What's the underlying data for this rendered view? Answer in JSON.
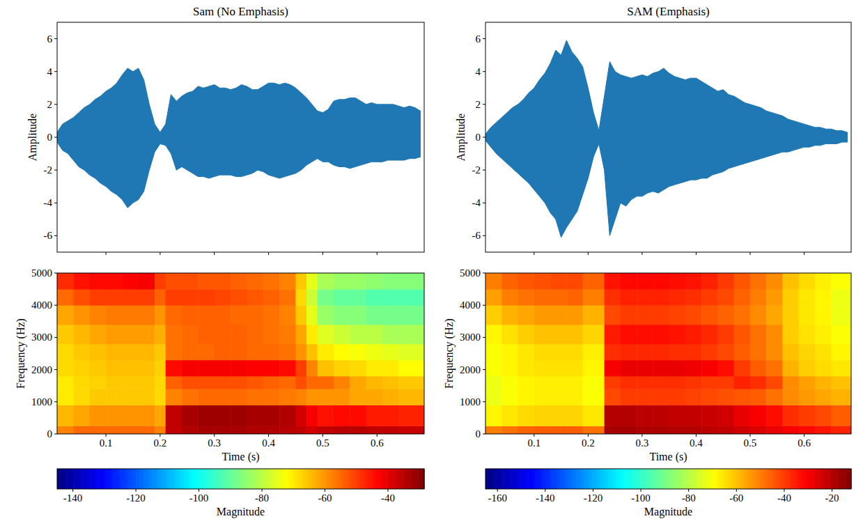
{
  "chart_data": [
    {
      "type": "area",
      "title": "Sam (No Emphasis)",
      "y_label": "Amplitude",
      "color": "#1f77b4",
      "xlim": [
        0.01,
        0.687
      ],
      "xticks": [
        0.1,
        0.2,
        0.3,
        0.4,
        0.5,
        0.6
      ],
      "ylim": [
        -7,
        7
      ],
      "yticks": [
        -6,
        -4,
        -2,
        0,
        2,
        4,
        6
      ],
      "tick_labels": "y",
      "x": [
        0.01,
        0.02,
        0.03,
        0.04,
        0.05,
        0.06,
        0.07,
        0.08,
        0.09,
        0.1,
        0.11,
        0.12,
        0.13,
        0.14,
        0.15,
        0.16,
        0.17,
        0.18,
        0.19,
        0.2,
        0.21,
        0.22,
        0.23,
        0.24,
        0.25,
        0.26,
        0.27,
        0.28,
        0.29,
        0.3,
        0.31,
        0.32,
        0.33,
        0.34,
        0.35,
        0.36,
        0.37,
        0.38,
        0.39,
        0.4,
        0.41,
        0.42,
        0.43,
        0.44,
        0.45,
        0.46,
        0.47,
        0.48,
        0.49,
        0.5,
        0.51,
        0.52,
        0.53,
        0.54,
        0.55,
        0.56,
        0.57,
        0.58,
        0.59,
        0.6,
        0.61,
        0.62,
        0.63,
        0.64,
        0.65,
        0.66,
        0.67,
        0.68
      ],
      "values": [
        0.3,
        0.8,
        1.0,
        1.2,
        1.5,
        1.8,
        2.0,
        2.3,
        2.5,
        2.8,
        3.0,
        3.3,
        3.8,
        4.2,
        4.0,
        4.2,
        3.5,
        2.0,
        0.8,
        0.3,
        0.8,
        2.6,
        2.2,
        2.5,
        2.7,
        2.8,
        3.1,
        3.0,
        3.1,
        3.2,
        3.0,
        3.0,
        2.9,
        3.0,
        3.2,
        3.1,
        2.9,
        2.9,
        3.1,
        3.3,
        3.3,
        3.2,
        3.3,
        3.2,
        3.0,
        2.7,
        2.4,
        2.0,
        1.6,
        1.5,
        1.7,
        2.2,
        2.3,
        2.3,
        2.4,
        2.4,
        2.2,
        2.0,
        2.1,
        2.0,
        2.0,
        2.0,
        2.0,
        1.9,
        1.8,
        1.9,
        1.8,
        1.6
      ],
      "low": [
        -0.3,
        -0.8,
        -1.0,
        -1.4,
        -1.8,
        -2.0,
        -2.3,
        -2.5,
        -2.8,
        -3.0,
        -3.3,
        -3.5,
        -3.8,
        -4.3,
        -4.0,
        -3.8,
        -3.3,
        -2.0,
        -0.9,
        -0.4,
        -0.5,
        -1.0,
        -2.0,
        -1.8,
        -2.0,
        -2.2,
        -2.4,
        -2.4,
        -2.5,
        -2.4,
        -2.3,
        -2.3,
        -2.3,
        -2.4,
        -2.4,
        -2.3,
        -2.2,
        -2.0,
        -2.1,
        -2.3,
        -2.4,
        -2.5,
        -2.4,
        -2.3,
        -2.2,
        -2.0,
        -1.7,
        -1.5,
        -1.3,
        -1.5,
        -1.5,
        -1.7,
        -1.8,
        -1.8,
        -1.9,
        -1.8,
        -1.7,
        -1.6,
        -1.5,
        -1.5,
        -1.5,
        -1.4,
        -1.4,
        -1.4,
        -1.4,
        -1.3,
        -1.3,
        -1.2
      ]
    },
    {
      "type": "area",
      "title": "SAM (Emphasis)",
      "y_label": "Amplitude",
      "color": "#1f77b4",
      "xlim": [
        0.01,
        0.687
      ],
      "xticks": [
        0.1,
        0.2,
        0.3,
        0.4,
        0.5,
        0.6
      ],
      "ylim": [
        -7,
        7
      ],
      "yticks": [
        -6,
        -4,
        -2,
        0,
        2,
        4,
        6
      ],
      "tick_labels": "y",
      "x": [
        0.01,
        0.02,
        0.03,
        0.04,
        0.05,
        0.06,
        0.07,
        0.08,
        0.09,
        0.1,
        0.11,
        0.12,
        0.13,
        0.14,
        0.15,
        0.16,
        0.17,
        0.18,
        0.19,
        0.2,
        0.21,
        0.22,
        0.23,
        0.24,
        0.25,
        0.26,
        0.27,
        0.28,
        0.29,
        0.3,
        0.31,
        0.32,
        0.33,
        0.34,
        0.35,
        0.36,
        0.37,
        0.38,
        0.39,
        0.4,
        0.41,
        0.42,
        0.43,
        0.44,
        0.45,
        0.46,
        0.47,
        0.48,
        0.49,
        0.5,
        0.51,
        0.52,
        0.53,
        0.54,
        0.55,
        0.56,
        0.57,
        0.58,
        0.59,
        0.6,
        0.61,
        0.62,
        0.63,
        0.64,
        0.65,
        0.66,
        0.67,
        0.68
      ],
      "values": [
        0.2,
        0.6,
        0.9,
        1.2,
        1.5,
        1.8,
        2.0,
        2.3,
        2.7,
        3.0,
        3.5,
        3.9,
        4.5,
        5.3,
        5.0,
        5.9,
        5.2,
        4.8,
        4.3,
        3.0,
        1.5,
        0.4,
        2.5,
        4.6,
        4.0,
        3.8,
        3.7,
        3.6,
        3.7,
        3.8,
        3.7,
        3.9,
        4.0,
        4.2,
        3.9,
        3.7,
        3.6,
        3.5,
        3.6,
        3.6,
        3.4,
        3.2,
        3.0,
        2.8,
        2.9,
        2.6,
        2.5,
        2.3,
        2.1,
        2.0,
        1.9,
        1.8,
        1.6,
        1.5,
        1.4,
        1.3,
        1.1,
        1.0,
        0.9,
        0.8,
        0.7,
        0.6,
        0.6,
        0.5,
        0.5,
        0.4,
        0.4,
        0.3
      ],
      "low": [
        -0.2,
        -0.6,
        -1.0,
        -1.3,
        -1.6,
        -1.9,
        -2.2,
        -2.5,
        -2.8,
        -3.2,
        -3.6,
        -4.0,
        -4.6,
        -5.0,
        -6.1,
        -5.5,
        -5.0,
        -4.5,
        -3.5,
        -2.5,
        -1.2,
        -0.4,
        -2.0,
        -6.0,
        -5.0,
        -4.0,
        -4.2,
        -3.8,
        -3.6,
        -3.6,
        -3.4,
        -3.3,
        -3.4,
        -3.2,
        -3.0,
        -2.9,
        -2.8,
        -2.7,
        -2.6,
        -2.6,
        -2.5,
        -2.5,
        -2.3,
        -2.2,
        -2.1,
        -1.9,
        -1.8,
        -1.7,
        -1.6,
        -1.5,
        -1.4,
        -1.3,
        -1.2,
        -1.1,
        -1.0,
        -0.9,
        -0.9,
        -0.8,
        -0.7,
        -0.6,
        -0.6,
        -0.5,
        -0.5,
        -0.4,
        -0.4,
        -0.4,
        -0.3,
        -0.3
      ]
    },
    {
      "type": "heatmap",
      "x_label": "Time (s)",
      "y_label": "Frequency (Hz)",
      "xlim": [
        0.01,
        0.687
      ],
      "xticks": [
        0.1,
        0.2,
        0.3,
        0.4,
        0.5,
        0.6
      ],
      "ylim": [
        0,
        5000
      ],
      "yticks": [
        0,
        1000,
        2000,
        3000,
        4000,
        5000
      ],
      "x_bins": [
        0.01,
        0.04,
        0.07,
        0.1,
        0.13,
        0.16,
        0.19,
        0.21,
        0.24,
        0.27,
        0.3,
        0.33,
        0.36,
        0.39,
        0.42,
        0.45,
        0.47,
        0.49,
        0.52,
        0.55,
        0.58,
        0.61,
        0.64,
        0.687
      ],
      "y_bins": [
        0,
        250,
        900,
        1400,
        1800,
        2300,
        2800,
        3400,
        4000,
        4500,
        5000
      ],
      "cells": [
        [
          -58,
          -55,
          -55,
          -55,
          -55,
          -55,
          -58,
          -36,
          -34,
          -33,
          -33,
          -33,
          -34,
          -34,
          -35,
          -36,
          -38,
          -36,
          -35,
          -35,
          -36,
          -36,
          -37
        ],
        [
          -64,
          -62,
          -60,
          -60,
          -60,
          -60,
          -62,
          -36,
          -33,
          -32,
          -32,
          -32,
          -33,
          -33,
          -34,
          -38,
          -42,
          -45,
          -44,
          -44,
          -46,
          -46,
          -47
        ],
        [
          -70,
          -68,
          -66,
          -66,
          -66,
          -66,
          -68,
          -58,
          -56,
          -55,
          -55,
          -55,
          -56,
          -56,
          -57,
          -58,
          -60,
          -60,
          -60,
          -62,
          -62,
          -63,
          -64
        ],
        [
          -70,
          -68,
          -67,
          -66,
          -66,
          -66,
          -68,
          -54,
          -52,
          -52,
          -52,
          -52,
          -53,
          -54,
          -55,
          -52,
          -55,
          -55,
          -58,
          -62,
          -64,
          -65,
          -66
        ],
        [
          -68,
          -67,
          -66,
          -65,
          -65,
          -65,
          -67,
          -44,
          -42,
          -42,
          -42,
          -42,
          -43,
          -43,
          -44,
          -50,
          -58,
          -65,
          -67,
          -68,
          -70,
          -70,
          -72
        ],
        [
          -68,
          -66,
          -65,
          -64,
          -64,
          -64,
          -66,
          -56,
          -55,
          -55,
          -54,
          -54,
          -55,
          -55,
          -56,
          -60,
          -65,
          -70,
          -72,
          -73,
          -74,
          -75,
          -76
        ],
        [
          -66,
          -64,
          -62,
          -61,
          -61,
          -61,
          -63,
          -56,
          -55,
          -54,
          -54,
          -54,
          -55,
          -56,
          -57,
          -62,
          -70,
          -76,
          -78,
          -80,
          -80,
          -82,
          -82
        ],
        [
          -62,
          -60,
          -58,
          -57,
          -57,
          -57,
          -60,
          -55,
          -54,
          -54,
          -54,
          -55,
          -55,
          -56,
          -58,
          -66,
          -75,
          -84,
          -86,
          -86,
          -88,
          -88,
          -88
        ],
        [
          -55,
          -52,
          -50,
          -50,
          -50,
          -50,
          -54,
          -50,
          -50,
          -50,
          -51,
          -52,
          -53,
          -54,
          -56,
          -68,
          -78,
          -88,
          -90,
          -90,
          -92,
          -92,
          -92
        ],
        [
          -48,
          -45,
          -44,
          -44,
          -43,
          -42,
          -50,
          -52,
          -52,
          -53,
          -53,
          -54,
          -55,
          -56,
          -58,
          -66,
          -75,
          -82,
          -84,
          -84,
          -85,
          -86,
          -86
        ]
      ],
      "color_range": [
        -145,
        -28.5
      ],
      "color_ticks": [
        -140,
        -120,
        -100,
        -80,
        -60,
        -40
      ],
      "color_label": "Magnitude"
    },
    {
      "type": "heatmap",
      "x_label": "Time (s)",
      "y_label": "Frequency (Hz)",
      "xlim": [
        0.01,
        0.687
      ],
      "xticks": [
        0.1,
        0.2,
        0.3,
        0.4,
        0.5,
        0.6
      ],
      "ylim": [
        0,
        5000
      ],
      "yticks": [
        0,
        1000,
        2000,
        3000,
        4000,
        5000
      ],
      "x_bins": [
        0.01,
        0.04,
        0.07,
        0.1,
        0.13,
        0.16,
        0.19,
        0.23,
        0.26,
        0.29,
        0.32,
        0.35,
        0.38,
        0.41,
        0.44,
        0.47,
        0.5,
        0.53,
        0.56,
        0.59,
        0.62,
        0.65,
        0.687
      ],
      "y_bins": [
        0,
        250,
        900,
        1400,
        1800,
        2300,
        2800,
        3400,
        4000,
        4500,
        5000
      ],
      "cells": [
        [
          -50,
          -48,
          -46,
          -45,
          -45,
          -45,
          -48,
          -18,
          -18,
          -19,
          -19,
          -20,
          -20,
          -21,
          -22,
          -24,
          -26,
          -28,
          -30,
          -32,
          -34,
          -36
        ],
        [
          -68,
          -66,
          -64,
          -63,
          -63,
          -63,
          -66,
          -20,
          -20,
          -21,
          -21,
          -22,
          -22,
          -23,
          -24,
          -28,
          -30,
          -33,
          -38,
          -40,
          -42,
          -45
        ],
        [
          -72,
          -70,
          -68,
          -67,
          -67,
          -67,
          -70,
          -42,
          -40,
          -40,
          -40,
          -40,
          -41,
          -42,
          -43,
          -44,
          -45,
          -48,
          -52,
          -54,
          -56,
          -58
        ],
        [
          -72,
          -70,
          -68,
          -67,
          -67,
          -67,
          -70,
          -40,
          -38,
          -38,
          -38,
          -38,
          -39,
          -40,
          -40,
          -36,
          -38,
          -42,
          -52,
          -55,
          -58,
          -60
        ],
        [
          -70,
          -68,
          -66,
          -65,
          -65,
          -65,
          -68,
          -30,
          -28,
          -28,
          -28,
          -28,
          -29,
          -30,
          -33,
          -40,
          -45,
          -48,
          -58,
          -62,
          -64,
          -66
        ],
        [
          -70,
          -68,
          -66,
          -64,
          -64,
          -64,
          -67,
          -38,
          -37,
          -37,
          -37,
          -38,
          -38,
          -40,
          -42,
          -45,
          -48,
          -52,
          -60,
          -63,
          -65,
          -68
        ],
        [
          -68,
          -65,
          -62,
          -60,
          -60,
          -60,
          -63,
          -35,
          -33,
          -33,
          -33,
          -34,
          -35,
          -37,
          -40,
          -44,
          -48,
          -52,
          -62,
          -65,
          -67,
          -70
        ],
        [
          -62,
          -58,
          -56,
          -54,
          -54,
          -54,
          -58,
          -42,
          -40,
          -40,
          -40,
          -41,
          -42,
          -44,
          -46,
          -48,
          -52,
          -56,
          -62,
          -66,
          -68,
          -72
        ],
        [
          -55,
          -50,
          -48,
          -47,
          -47,
          -46,
          -50,
          -38,
          -36,
          -36,
          -36,
          -37,
          -38,
          -40,
          -42,
          -46,
          -50,
          -54,
          -62,
          -66,
          -68,
          -72
        ],
        [
          -50,
          -46,
          -44,
          -43,
          -42,
          -42,
          -46,
          -34,
          -32,
          -32,
          -32,
          -33,
          -34,
          -36,
          -40,
          -44,
          -48,
          -52,
          -60,
          -64,
          -67,
          -70
        ]
      ],
      "color_range": [
        -165,
        -12
      ],
      "color_ticks": [
        -160,
        -140,
        -120,
        -100,
        -80,
        -60,
        -40,
        -20
      ],
      "color_label": "Magnitude"
    }
  ]
}
